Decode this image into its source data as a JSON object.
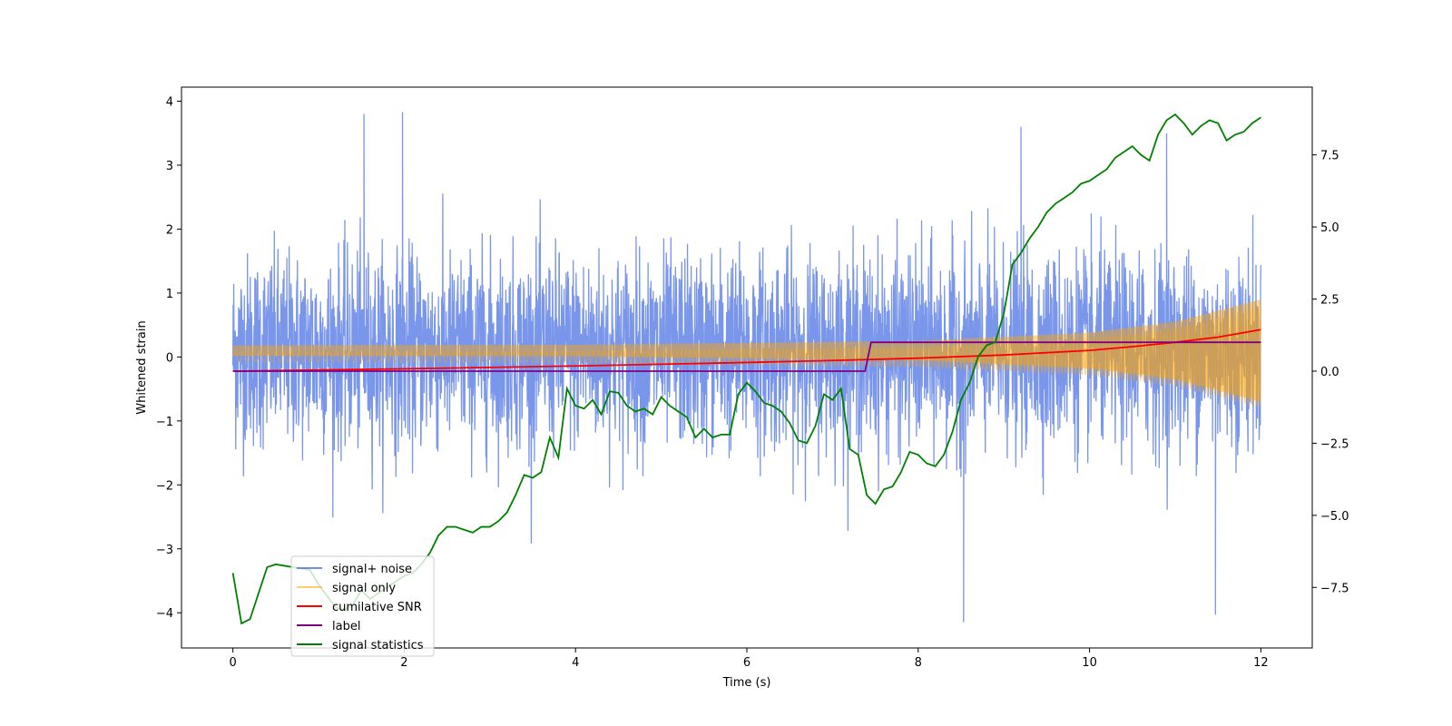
{
  "chart_data": {
    "type": "line",
    "xlabel": "Time (s)",
    "ylabel": "Whitened strain",
    "xlim": [
      -0.6,
      12.6
    ],
    "ylim": [
      -4.55,
      4.22
    ],
    "y2lim": [
      -9.6,
      9.85
    ],
    "xticks": [
      0,
      2,
      4,
      6,
      8,
      10,
      12
    ],
    "yticks": [
      -4,
      -3,
      -2,
      -1,
      0,
      1,
      2,
      3,
      4
    ],
    "y2ticks": [
      -7.5,
      -5.0,
      -2.5,
      0.0,
      2.5,
      5.0,
      7.5
    ],
    "grid": false,
    "legend_position": "lower-left",
    "series": [
      {
        "name": "signal+ noise",
        "axis": "left",
        "color": "#4169e1",
        "kind": "noise",
        "x_range": [
          0,
          12
        ],
        "std": 0.75,
        "notable_peaks": [
          {
            "x": 1.53,
            "y": 3.8
          },
          {
            "x": 1.98,
            "y": 3.83
          },
          {
            "x": 8.53,
            "y": -4.15
          },
          {
            "x": 11.47,
            "y": -4.03
          },
          {
            "x": 9.2,
            "y": 3.6
          },
          {
            "x": 10.9,
            "y": 3.5
          }
        ]
      },
      {
        "name": "signal only",
        "axis": "left",
        "color": "#ffa500",
        "kind": "chirp",
        "x_range": [
          0,
          12
        ],
        "envelope": [
          [
            0,
            0.08
          ],
          [
            4,
            0.09
          ],
          [
            8,
            0.15
          ],
          [
            10,
            0.28
          ],
          [
            11,
            0.45
          ],
          [
            12,
            0.8
          ]
        ]
      },
      {
        "name": "cumilative SNR",
        "axis": "right",
        "color": "#ff0000",
        "x": [
          0,
          2,
          4,
          6,
          7,
          8,
          9,
          10,
          10.5,
          11,
          11.5,
          12
        ],
        "y": [
          0.0,
          0.08,
          0.18,
          0.3,
          0.37,
          0.45,
          0.56,
          0.72,
          0.85,
          1.0,
          1.18,
          1.44
        ]
      },
      {
        "name": "label",
        "axis": "right",
        "color": "#800080",
        "x": [
          0,
          7.38,
          7.45,
          12
        ],
        "y": [
          0,
          0,
          1,
          1
        ]
      },
      {
        "name": "signal statistics",
        "axis": "right",
        "color": "#008000",
        "x": [
          0,
          0.1,
          0.2,
          0.3,
          0.4,
          0.5,
          0.6,
          0.7,
          0.8,
          0.9,
          1.0,
          1.1,
          1.2,
          1.3,
          1.4,
          1.5,
          1.6,
          1.7,
          1.8,
          1.9,
          2.0,
          2.1,
          2.2,
          2.3,
          2.4,
          2.5,
          2.6,
          2.7,
          2.8,
          2.9,
          3.0,
          3.1,
          3.2,
          3.3,
          3.4,
          3.5,
          3.6,
          3.7,
          3.8,
          3.9,
          4.0,
          4.1,
          4.2,
          4.3,
          4.4,
          4.5,
          4.6,
          4.7,
          4.8,
          4.9,
          5.0,
          5.1,
          5.2,
          5.3,
          5.4,
          5.5,
          5.6,
          5.7,
          5.8,
          5.9,
          6.0,
          6.1,
          6.2,
          6.3,
          6.4,
          6.5,
          6.6,
          6.7,
          6.8,
          6.9,
          7.0,
          7.1,
          7.2,
          7.3,
          7.4,
          7.5,
          7.6,
          7.7,
          7.8,
          7.9,
          8.0,
          8.1,
          8.2,
          8.3,
          8.4,
          8.5,
          8.6,
          8.7,
          8.8,
          8.9,
          9.0,
          9.1,
          9.2,
          9.3,
          9.4,
          9.5,
          9.6,
          9.7,
          9.8,
          9.9,
          10.0,
          10.1,
          10.2,
          10.3,
          10.4,
          10.5,
          10.6,
          10.7,
          10.8,
          10.9,
          11.0,
          11.1,
          11.2,
          11.3,
          11.4,
          11.5,
          11.6,
          11.7,
          11.8,
          11.9,
          12.0
        ],
        "y": [
          -7.0,
          -8.75,
          -8.6,
          -7.7,
          -6.8,
          -6.7,
          -6.75,
          -6.8,
          -6.85,
          -6.9,
          -7.4,
          -7.8,
          -8.2,
          -8.3,
          -8.1,
          -7.6,
          -7.9,
          -7.7,
          -7.5,
          -7.3,
          -7.1,
          -7.0,
          -6.7,
          -6.3,
          -5.7,
          -5.4,
          -5.4,
          -5.5,
          -5.6,
          -5.4,
          -5.4,
          -5.2,
          -4.9,
          -4.3,
          -3.6,
          -3.7,
          -3.5,
          -2.3,
          -3.0,
          -0.6,
          -1.2,
          -1.3,
          -1.0,
          -1.5,
          -0.7,
          -0.75,
          -1.2,
          -1.4,
          -1.3,
          -1.5,
          -0.9,
          -1.2,
          -1.4,
          -1.6,
          -2.3,
          -2.0,
          -2.3,
          -2.2,
          -2.2,
          -0.8,
          -0.4,
          -0.7,
          -1.1,
          -1.2,
          -1.4,
          -1.8,
          -2.4,
          -2.5,
          -1.9,
          -0.8,
          -1.0,
          -0.6,
          -2.7,
          -2.9,
          -4.3,
          -4.6,
          -4.1,
          -4.0,
          -3.5,
          -2.8,
          -2.9,
          -3.2,
          -3.3,
          -2.9,
          -2.1,
          -1.0,
          -0.4,
          0.5,
          0.9,
          1.0,
          2.0,
          3.7,
          4.1,
          4.6,
          5.0,
          5.5,
          5.8,
          6.0,
          6.2,
          6.5,
          6.6,
          6.8,
          7.0,
          7.4,
          7.6,
          7.8,
          7.5,
          7.3,
          8.2,
          8.7,
          8.9,
          8.6,
          8.2,
          8.5,
          8.7,
          8.6,
          8.0,
          8.2,
          8.3,
          8.6,
          8.8
        ]
      }
    ]
  }
}
